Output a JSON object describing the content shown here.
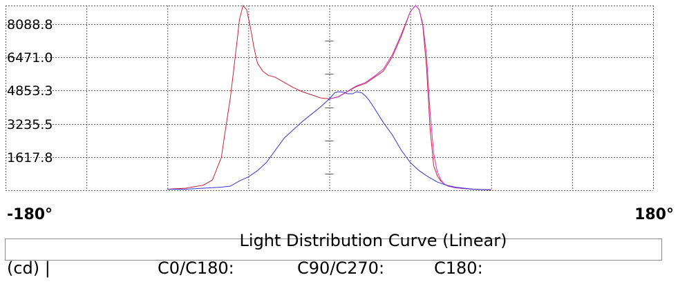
{
  "chart_data": {
    "type": "line",
    "title": "Light Distribution Curve (Linear)",
    "xlim": [
      -180,
      180
    ],
    "ylim": [
      0,
      9000
    ],
    "x_end_labels": [
      "-180°",
      "180°"
    ],
    "yticks": [
      1617.8,
      3235.5,
      4853.3,
      6471.0,
      8088.8
    ],
    "ytick_labels": [
      "1617.8",
      "3235.5",
      "4853.3",
      "6471.0",
      "8088.8"
    ],
    "ylabel": "(cd)",
    "grid": true,
    "series": [
      {
        "name": "C0/C180:",
        "color": "#cc2233",
        "x": [
          -90,
          -80,
          -70,
          -65,
          -60,
          -58,
          -55,
          -53,
          -51,
          -50,
          -48,
          -46,
          -44,
          -42,
          -40,
          -37,
          -34,
          -30,
          -25,
          -20,
          -15,
          -10,
          -5,
          0,
          5,
          10,
          15,
          20,
          25,
          30,
          35,
          40,
          45,
          48,
          50,
          52,
          54,
          56,
          58,
          60,
          62,
          64,
          66,
          70,
          75,
          80,
          85,
          90
        ],
        "y": [
          50,
          100,
          250,
          500,
          1600,
          2800,
          4500,
          6000,
          7500,
          8300,
          9000,
          8800,
          8000,
          7000,
          6200,
          5800,
          5600,
          5500,
          5250,
          5000,
          4800,
          4650,
          4500,
          4450,
          4550,
          4800,
          5050,
          5200,
          5500,
          5800,
          6500,
          7500,
          8700,
          9000,
          8800,
          8000,
          6000,
          3000,
          1200,
          700,
          450,
          300,
          200,
          120,
          80,
          50,
          30,
          20
        ]
      },
      {
        "name": "C90/C270:",
        "color": "#cc33cc",
        "x": [
          0,
          5,
          10,
          15,
          20,
          25,
          30,
          35,
          40,
          45,
          48,
          50,
          52,
          54,
          56,
          58,
          60,
          62,
          64,
          66,
          70,
          75,
          80,
          85,
          90
        ],
        "y": [
          4450,
          4560,
          4820,
          5080,
          5250,
          5550,
          5900,
          6600,
          7600,
          8700,
          9000,
          8800,
          8100,
          6600,
          3800,
          1800,
          900,
          500,
          300,
          200,
          120,
          80,
          50,
          30,
          20
        ]
      },
      {
        "name": "C180:",
        "color": "#3333cc",
        "x": [
          -90,
          -80,
          -70,
          -60,
          -55,
          -50,
          -45,
          -40,
          -35,
          -30,
          -25,
          -20,
          -15,
          -10,
          -5,
          0,
          3,
          5,
          8,
          10,
          13,
          15,
          18,
          20,
          22,
          25,
          30,
          35,
          40,
          45,
          50,
          55,
          60,
          65,
          70,
          80,
          90
        ],
        "y": [
          50,
          50,
          100,
          150,
          200,
          450,
          650,
          950,
          1350,
          1950,
          2550,
          2950,
          3350,
          3700,
          4050,
          4450,
          4750,
          4800,
          4780,
          4700,
          4700,
          4800,
          4750,
          4600,
          4400,
          4000,
          3300,
          2700,
          1950,
          1350,
          950,
          650,
          400,
          250,
          150,
          50,
          20
        ]
      }
    ]
  }
}
